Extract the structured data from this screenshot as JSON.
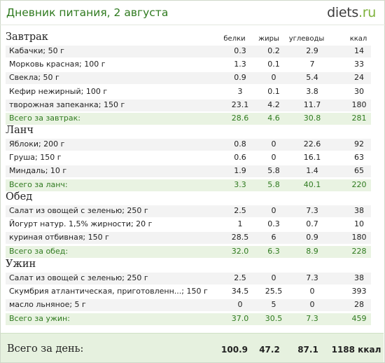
{
  "header": {
    "title": "Дневник питания, 2 августа",
    "logo_main": "diets",
    "logo_tld": ".ru"
  },
  "columns": {
    "protein": "белки",
    "fat": "жиры",
    "carbs": "углеводы",
    "kcal": "ккал"
  },
  "meals": [
    {
      "name": "Завтрак",
      "items": [
        {
          "name": "Кабачки; 50 г",
          "protein": "0.3",
          "fat": "0.2",
          "carbs": "2.9",
          "kcal": "14"
        },
        {
          "name": "Морковь красная; 100 г",
          "protein": "1.3",
          "fat": "0.1",
          "carbs": "7",
          "kcal": "33"
        },
        {
          "name": "Свекла; 50 г",
          "protein": "0.9",
          "fat": "0",
          "carbs": "5.4",
          "kcal": "24"
        },
        {
          "name": "Кефир нежирный; 100 г",
          "protein": "3",
          "fat": "0.1",
          "carbs": "3.8",
          "kcal": "30"
        },
        {
          "name": "творожная запеканка; 150 г",
          "protein": "23.1",
          "fat": "4.2",
          "carbs": "11.7",
          "kcal": "180"
        }
      ],
      "total": {
        "label": "Всего за завтрак:",
        "protein": "28.6",
        "fat": "4.6",
        "carbs": "30.8",
        "kcal": "281"
      }
    },
    {
      "name": "Ланч",
      "items": [
        {
          "name": "Яблоки; 200 г",
          "protein": "0.8",
          "fat": "0",
          "carbs": "22.6",
          "kcal": "92"
        },
        {
          "name": "Груша; 150 г",
          "protein": "0.6",
          "fat": "0",
          "carbs": "16.1",
          "kcal": "63"
        },
        {
          "name": "Миндаль; 10 г",
          "protein": "1.9",
          "fat": "5.8",
          "carbs": "1.4",
          "kcal": "65"
        }
      ],
      "total": {
        "label": "Всего за ланч:",
        "protein": "3.3",
        "fat": "5.8",
        "carbs": "40.1",
        "kcal": "220"
      }
    },
    {
      "name": "Обед",
      "items": [
        {
          "name": "Салат из овощей с зеленью; 250 г",
          "protein": "2.5",
          "fat": "0",
          "carbs": "7.3",
          "kcal": "38"
        },
        {
          "name": "Йогурт натур. 1,5% жирности; 20 г",
          "protein": "1",
          "fat": "0.3",
          "carbs": "0.7",
          "kcal": "10"
        },
        {
          "name": "куриная отбивная; 150 г",
          "protein": "28.5",
          "fat": "6",
          "carbs": "0.9",
          "kcal": "180"
        }
      ],
      "total": {
        "label": "Всего за обед:",
        "protein": "32.0",
        "fat": "6.3",
        "carbs": "8.9",
        "kcal": "228"
      }
    },
    {
      "name": "Ужин",
      "items": [
        {
          "name": "Салат из овощей с зеленью; 250 г",
          "protein": "2.5",
          "fat": "0",
          "carbs": "7.3",
          "kcal": "38"
        },
        {
          "name": "Скумбрия атлантическая, приготовленн...; 150 г",
          "protein": "34.5",
          "fat": "25.5",
          "carbs": "0",
          "kcal": "393"
        },
        {
          "name": "масло льняное; 5 г",
          "protein": "0",
          "fat": "5",
          "carbs": "0",
          "kcal": "28"
        }
      ],
      "total": {
        "label": "Всего за ужин:",
        "protein": "37.0",
        "fat": "30.5",
        "carbs": "7.3",
        "kcal": "459"
      }
    }
  ],
  "day_total": {
    "label": "Всего за день:",
    "protein": "100.9",
    "fat": "47.2",
    "carbs": "87.1",
    "kcal": "1188 ккал"
  },
  "colors": {
    "title_green": "#2f7a1f",
    "total_row_bg": "#e9f3e2",
    "day_bar_bg": "#e6f1df",
    "logo_tld": "#7db13a"
  }
}
